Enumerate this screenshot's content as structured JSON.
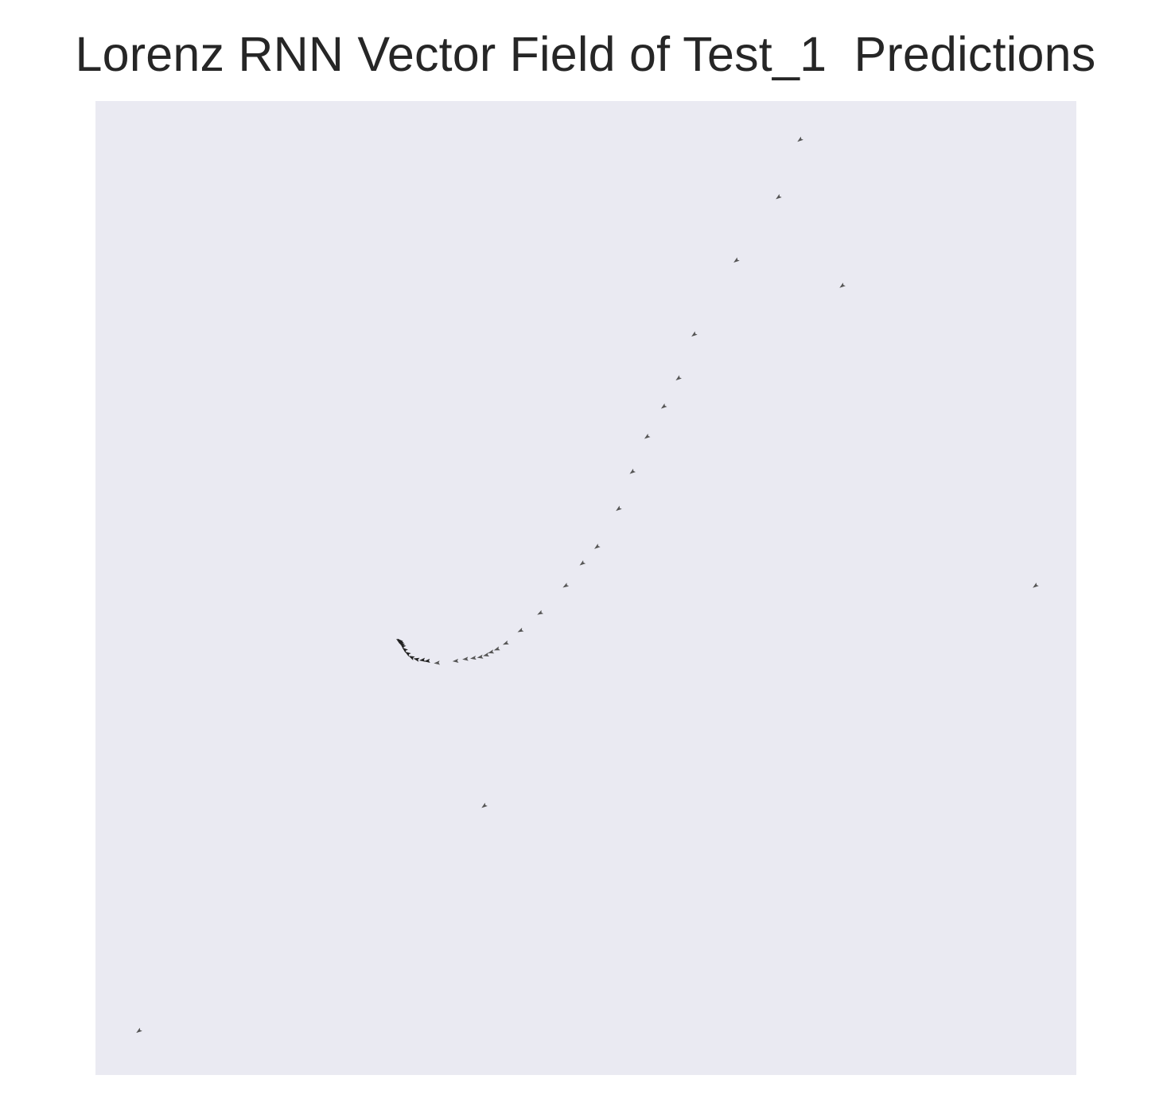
{
  "chart_data": {
    "type": "quiver",
    "title": "Lorenz RNN Vector Field of Test_1  Predictions",
    "xlabel": "",
    "ylabel": "",
    "xlim": [
      0,
      1000
    ],
    "ylim": [
      0,
      1000
    ],
    "grid": false,
    "legend": false,
    "ticks_visible": false,
    "colors": {
      "plot_background": "#eaeaf2",
      "arrow": "#555555",
      "arrow_dense": "#222222",
      "title": "#262626"
    },
    "points": [
      {
        "x": 718,
        "y": 960,
        "u": -0.8,
        "v": -0.6
      },
      {
        "x": 696,
        "y": 901,
        "u": -0.8,
        "v": -0.6
      },
      {
        "x": 653,
        "y": 836,
        "u": -0.8,
        "v": -0.6
      },
      {
        "x": 761,
        "y": 810,
        "u": -0.8,
        "v": -0.6
      },
      {
        "x": 610,
        "y": 760,
        "u": -0.8,
        "v": -0.6
      },
      {
        "x": 594,
        "y": 715,
        "u": -0.8,
        "v": -0.6
      },
      {
        "x": 579,
        "y": 686,
        "u": -0.8,
        "v": -0.6
      },
      {
        "x": 562,
        "y": 655,
        "u": -0.8,
        "v": -0.6
      },
      {
        "x": 547,
        "y": 619,
        "u": -0.8,
        "v": -0.6
      },
      {
        "x": 533,
        "y": 581,
        "u": -0.8,
        "v": -0.6
      },
      {
        "x": 511,
        "y": 542,
        "u": -0.8,
        "v": -0.6
      },
      {
        "x": 496,
        "y": 525,
        "u": -0.8,
        "v": -0.6
      },
      {
        "x": 479,
        "y": 502,
        "u": -0.85,
        "v": -0.53
      },
      {
        "x": 453,
        "y": 474,
        "u": -0.88,
        "v": -0.48
      },
      {
        "x": 433,
        "y": 456,
        "u": -0.9,
        "v": -0.44
      },
      {
        "x": 418,
        "y": 443,
        "u": -0.92,
        "v": -0.39
      },
      {
        "x": 409,
        "y": 437,
        "u": -0.94,
        "v": -0.34
      },
      {
        "x": 403,
        "y": 434,
        "u": -0.96,
        "v": -0.28
      },
      {
        "x": 398,
        "y": 431,
        "u": -0.97,
        "v": -0.24
      },
      {
        "x": 392,
        "y": 429,
        "u": -0.98,
        "v": -0.2
      },
      {
        "x": 385,
        "y": 428,
        "u": -0.99,
        "v": -0.16
      },
      {
        "x": 377,
        "y": 427,
        "u": -0.99,
        "v": -0.12
      },
      {
        "x": 367,
        "y": 425,
        "u": -0.99,
        "v": -0.1
      },
      {
        "x": 348,
        "y": 423,
        "u": -0.99,
        "v": -0.1
      },
      {
        "x": 338,
        "y": 425,
        "u": -0.99,
        "v": -0.1
      },
      {
        "x": 333,
        "y": 426,
        "u": -0.99,
        "v": -0.1
      },
      {
        "x": 327,
        "y": 427,
        "u": -0.97,
        "v": 0.24
      },
      {
        "x": 322,
        "y": 429,
        "u": -0.9,
        "v": 0.43
      },
      {
        "x": 318,
        "y": 433,
        "u": -0.83,
        "v": 0.56
      },
      {
        "x": 315,
        "y": 437,
        "u": -0.77,
        "v": 0.64
      },
      {
        "x": 313,
        "y": 441,
        "u": -0.72,
        "v": 0.69
      },
      {
        "x": 312,
        "y": 443,
        "u": -0.68,
        "v": 0.73
      },
      {
        "x": 311,
        "y": 445,
        "u": -0.6,
        "v": 0.8
      },
      {
        "x": 310,
        "y": 446,
        "u": -0.7,
        "v": 0.7
      },
      {
        "x": 309,
        "y": 446,
        "u": -0.8,
        "v": 0.6
      },
      {
        "x": 958,
        "y": 502,
        "u": -0.8,
        "v": -0.6
      },
      {
        "x": 396,
        "y": 276,
        "u": -0.8,
        "v": -0.6
      },
      {
        "x": 44,
        "y": 45,
        "u": -0.8,
        "v": -0.6
      }
    ]
  }
}
